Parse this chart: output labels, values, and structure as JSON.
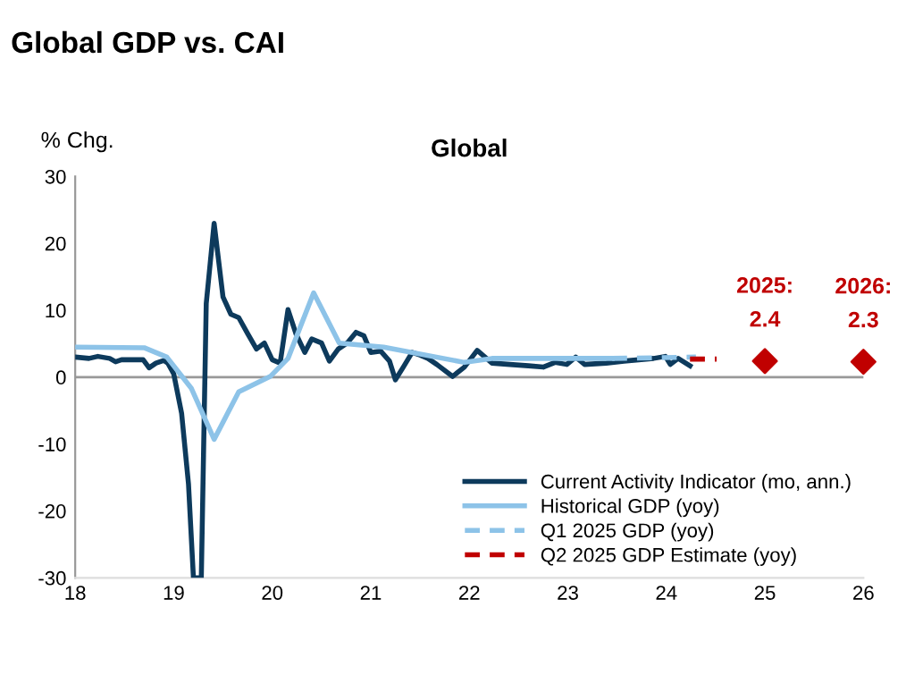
{
  "chart_data": {
    "type": "line",
    "title": "Global GDP vs. CAI",
    "subtitle": "Global",
    "ylabel": "% Chg.",
    "xlim": [
      18,
      26
    ],
    "xticks": [
      18,
      19,
      20,
      21,
      22,
      23,
      24,
      25,
      26
    ],
    "ylim": [
      -30,
      30
    ],
    "yticks": [
      -30,
      -20,
      -10,
      0,
      10,
      20,
      30
    ],
    "grid": false,
    "legend": "bottom right",
    "marker": "none",
    "ref_lines": [
      {
        "axis": "y",
        "value": 0,
        "color": "#999999"
      }
    ],
    "series": [
      {
        "name": "Current Activity Indicator (mo, ann.)",
        "color": "#0d3a5c",
        "line_style": "solid",
        "x": [
          18.0,
          18.14,
          18.23,
          18.35,
          18.41,
          18.47,
          18.56,
          18.69,
          18.75,
          18.82,
          18.9,
          18.94,
          19.0,
          19.08,
          19.15,
          19.2,
          19.28,
          19.33,
          19.41,
          19.5,
          19.58,
          19.66,
          19.75,
          19.84,
          19.92,
          20.0,
          20.08,
          20.16,
          20.24,
          20.33,
          20.4,
          20.5,
          20.58,
          20.67,
          20.76,
          20.85,
          20.93,
          21.0,
          21.1,
          21.19,
          21.25,
          21.33,
          21.42,
          21.5,
          21.58,
          21.67,
          21.83,
          21.95,
          22.08,
          22.23,
          22.41,
          22.6,
          22.75,
          22.87,
          22.99,
          23.08,
          23.17,
          23.39,
          23.57,
          23.72,
          23.87,
          23.99,
          24.04,
          24.12,
          24.24
        ],
        "values": [
          3.0,
          2.8,
          3.1,
          2.8,
          2.3,
          2.6,
          2.6,
          2.6,
          1.4,
          2.1,
          2.5,
          2.1,
          0.5,
          -5.4,
          -16,
          -30,
          -30,
          11,
          23,
          12,
          9.4,
          8.9,
          6.5,
          4.2,
          5.1,
          2.6,
          2.1,
          10.1,
          6.5,
          3.7,
          5.7,
          5.1,
          2.4,
          4.2,
          5.1,
          6.7,
          6.2,
          3.7,
          3.9,
          2.4,
          -0.4,
          1.5,
          3.7,
          3.3,
          2.8,
          1.9,
          0.1,
          1.5,
          4.0,
          2.1,
          1.9,
          1.7,
          1.5,
          2.2,
          1.9,
          3.0,
          1.9,
          2.1,
          2.4,
          2.6,
          2.8,
          3.1,
          1.9,
          2.8,
          1.7
        ]
      },
      {
        "name": "Historical GDP (yoy)",
        "color": "#8dc3e8",
        "line_style": "solid",
        "x": [
          18.0,
          18.7,
          18.93,
          19.18,
          19.41,
          19.66,
          19.98,
          20.16,
          20.42,
          20.68,
          21.13,
          21.95,
          22.23,
          22.84,
          23.45
        ],
        "values": [
          4.5,
          4.4,
          3.0,
          -1.7,
          -9.3,
          -2.2,
          0.1,
          2.8,
          12.6,
          5.1,
          4.5,
          2.2,
          2.8,
          2.8,
          2.8
        ]
      },
      {
        "name": "Q1 2025 GDP (yoy)",
        "color": "#8dc3e8",
        "line_style": "dashed",
        "x": [
          23.45,
          23.9,
          24.3
        ],
        "values": [
          2.8,
          2.9,
          3.0
        ]
      },
      {
        "name": "Q2 2025 GDP Estimate (yoy)",
        "color": "#c00000",
        "line_style": "dashed",
        "x": [
          24.24,
          24.51
        ],
        "values": [
          2.7,
          2.7
        ]
      },
      {
        "type": "scatter",
        "marker": "diamond",
        "color": "#c00000",
        "x": [
          25,
          26
        ],
        "values": [
          2.4,
          2.3
        ]
      }
    ],
    "annotations": [
      {
        "text": "2025:\n2.4",
        "x": 25,
        "y": 2.4
      },
      {
        "text": "2026:\n2.3",
        "x": 26,
        "y": 2.3
      }
    ]
  }
}
